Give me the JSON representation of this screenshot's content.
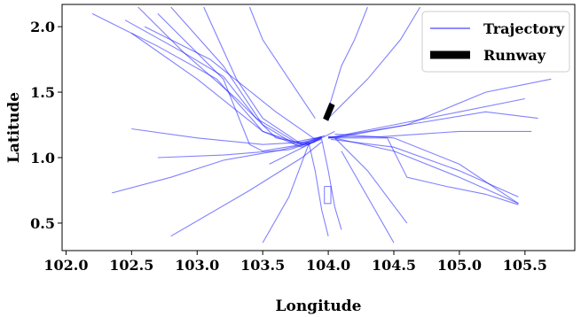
{
  "chart_data": {
    "type": "line",
    "title": "",
    "xlabel": "Longitude",
    "ylabel": "Latitude",
    "xlim": [
      101.97,
      105.88
    ],
    "ylim": [
      0.29,
      2.17
    ],
    "xticks": [
      "102.0",
      "102.5",
      "103.0",
      "103.5",
      "104.0",
      "104.5",
      "105.0",
      "105.5"
    ],
    "yticks": [
      "0.5",
      "1.0",
      "1.5",
      "2.0"
    ],
    "grid": false,
    "legend": {
      "placement": "top-right",
      "entries": [
        {
          "label": "Trajectory",
          "color": "#1a1aff"
        },
        {
          "label": "Runway",
          "color": "#000000"
        }
      ]
    },
    "colors": {
      "trajectory": "#1a1aff",
      "runway": "#000000"
    },
    "runway": {
      "x": [
        103.98,
        104.03
      ],
      "y": [
        1.34,
        1.38
      ]
    },
    "series": [
      {
        "name": "Trajectory",
        "x": [
          102.55,
          102.9,
          103.2,
          103.45,
          103.75,
          103.95
        ],
        "y": [
          2.15,
          1.8,
          1.62,
          1.3,
          1.12,
          1.16
        ]
      },
      {
        "name": "Trajectory",
        "x": [
          102.2,
          102.7,
          103.15,
          103.5,
          103.8,
          103.95
        ],
        "y": [
          2.1,
          1.85,
          1.6,
          1.2,
          1.08,
          1.15
        ]
      },
      {
        "name": "Trajectory",
        "x": [
          102.8,
          103.2,
          103.5,
          103.75,
          103.95
        ],
        "y": [
          2.15,
          1.7,
          1.25,
          1.1,
          1.16
        ]
      },
      {
        "name": "Trajectory",
        "x": [
          102.5,
          103.0,
          103.5,
          103.8,
          103.95
        ],
        "y": [
          1.95,
          1.6,
          1.2,
          1.1,
          1.16
        ]
      },
      {
        "name": "Trajectory",
        "x": [
          102.45,
          102.9,
          103.3,
          103.6,
          103.85,
          103.97
        ],
        "y": [
          2.05,
          1.8,
          1.45,
          1.15,
          1.1,
          1.17
        ]
      },
      {
        "name": "Trajectory",
        "x": [
          102.7,
          103.2,
          103.4,
          103.5,
          103.8,
          103.95
        ],
        "y": [
          2.1,
          1.6,
          1.1,
          1.05,
          1.1,
          1.16
        ]
      },
      {
        "name": "Trajectory",
        "x": [
          103.05,
          103.3,
          103.5,
          103.8,
          103.95
        ],
        "y": [
          2.15,
          1.6,
          1.3,
          1.1,
          1.15
        ]
      },
      {
        "name": "Trajectory",
        "x": [
          102.35,
          102.8,
          103.2,
          103.6,
          103.9
        ],
        "y": [
          0.73,
          0.85,
          0.98,
          1.05,
          1.12
        ]
      },
      {
        "name": "Trajectory",
        "x": [
          102.7,
          103.2,
          103.7,
          103.95
        ],
        "y": [
          1.0,
          1.02,
          1.06,
          1.14
        ]
      },
      {
        "name": "Trajectory",
        "x": [
          102.5,
          103.0,
          103.5,
          103.85
        ],
        "y": [
          1.22,
          1.15,
          1.1,
          1.12
        ]
      },
      {
        "name": "Trajectory",
        "x": [
          103.85,
          103.9,
          103.95,
          104.0
        ],
        "y": [
          1.12,
          0.9,
          0.6,
          0.4
        ]
      },
      {
        "name": "Trajectory",
        "x": [
          103.95,
          104.0,
          104.05,
          104.1
        ],
        "y": [
          1.14,
          0.9,
          0.62,
          0.45
        ]
      },
      {
        "name": "Trajectory",
        "x": [
          103.97,
          103.97,
          104.02,
          104.02,
          103.97
        ],
        "y": [
          0.78,
          0.65,
          0.65,
          0.78,
          0.78
        ]
      },
      {
        "name": "Trajectory",
        "x": [
          104.0,
          104.4,
          104.7,
          105.0,
          105.4,
          105.55
        ],
        "y": [
          1.16,
          1.16,
          1.18,
          1.2,
          1.2,
          1.2
        ]
      },
      {
        "name": "Trajectory",
        "x": [
          104.0,
          104.45,
          104.6,
          104.9,
          105.2,
          105.45
        ],
        "y": [
          1.15,
          1.15,
          0.85,
          0.78,
          0.72,
          0.64
        ]
      },
      {
        "name": "Trajectory",
        "x": [
          104.05,
          104.5,
          105.0,
          105.45
        ],
        "y": [
          1.18,
          1.15,
          0.95,
          0.65
        ]
      },
      {
        "name": "Trajectory",
        "x": [
          104.0,
          104.5,
          105.0,
          105.5
        ],
        "y": [
          1.15,
          1.25,
          1.35,
          1.45
        ]
      },
      {
        "name": "Trajectory",
        "x": [
          104.0,
          104.5,
          105.0,
          105.45
        ],
        "y": [
          1.16,
          1.05,
          0.85,
          0.65
        ]
      },
      {
        "name": "Trajectory",
        "x": [
          104.0,
          104.6,
          105.2,
          105.6
        ],
        "y": [
          1.15,
          1.25,
          1.35,
          1.3
        ]
      },
      {
        "name": "Trajectory",
        "x": [
          104.02,
          104.5,
          105.0,
          105.45
        ],
        "y": [
          1.14,
          1.08,
          0.9,
          0.7
        ]
      },
      {
        "name": "Trajectory",
        "x": [
          104.0,
          104.3,
          104.55,
          104.7
        ],
        "y": [
          1.3,
          1.6,
          1.9,
          2.15
        ]
      },
      {
        "name": "Trajectory",
        "x": [
          103.98,
          104.1,
          104.2,
          104.3
        ],
        "y": [
          1.3,
          1.7,
          1.9,
          2.15
        ]
      },
      {
        "name": "Trajectory",
        "x": [
          103.9,
          103.7,
          103.5,
          103.4
        ],
        "y": [
          1.3,
          1.6,
          1.9,
          2.15
        ]
      },
      {
        "name": "Trajectory",
        "x": [
          103.85,
          103.7,
          103.5
        ],
        "y": [
          1.1,
          0.7,
          0.35
        ]
      },
      {
        "name": "Trajectory",
        "x": [
          104.1,
          104.3,
          104.5
        ],
        "y": [
          1.05,
          0.7,
          0.35
        ]
      },
      {
        "name": "Trajectory",
        "x": [
          102.8,
          103.4,
          103.8,
          103.95
        ],
        "y": [
          0.4,
          0.75,
          1.0,
          1.12
        ]
      },
      {
        "name": "Trajectory",
        "x": [
          104.05,
          104.6,
          105.2,
          105.7
        ],
        "y": [
          1.15,
          1.25,
          1.5,
          1.6
        ]
      },
      {
        "name": "Trajectory",
        "x": [
          102.6,
          103.1,
          103.6,
          103.9
        ],
        "y": [
          2.0,
          1.75,
          1.35,
          1.14
        ]
      },
      {
        "name": "Trajectory",
        "x": [
          103.55,
          103.75,
          103.95,
          104.05
        ],
        "y": [
          0.95,
          1.05,
          1.15,
          1.2
        ]
      },
      {
        "name": "Trajectory",
        "x": [
          104.05,
          104.3,
          104.45,
          104.6
        ],
        "y": [
          1.15,
          0.9,
          0.7,
          0.5
        ]
      }
    ]
  }
}
